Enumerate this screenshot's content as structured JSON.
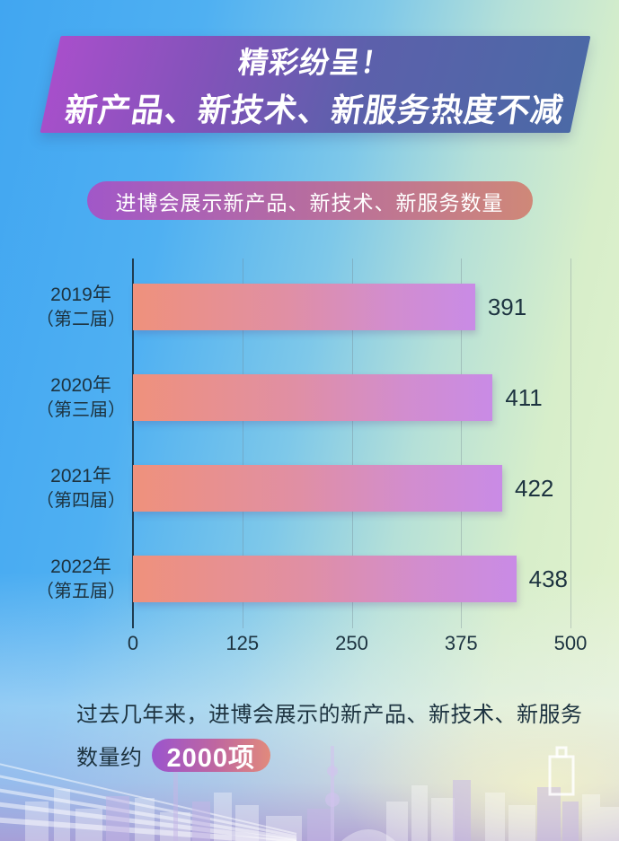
{
  "banner": {
    "line1": "精彩纷呈！",
    "line2": "新产品、新技术、新服务热度不减"
  },
  "subtitle_pill": "进博会展示新产品、新技术、新服务数量",
  "chart_data": {
    "type": "bar",
    "orientation": "horizontal",
    "title": "进博会展示新产品、新技术、新服务数量",
    "categories": [
      {
        "year": "2019年",
        "session": "（第二届）"
      },
      {
        "year": "2020年",
        "session": "（第三届）"
      },
      {
        "year": "2021年",
        "session": "（第四届）"
      },
      {
        "year": "2022年",
        "session": "（第五届）"
      }
    ],
    "values": [
      391,
      411,
      422,
      438
    ],
    "x_ticks": [
      0,
      125,
      250,
      375,
      500
    ],
    "xlim": [
      0,
      500
    ],
    "grid": true,
    "legend": "none",
    "bar_gradient": [
      "#ef917c",
      "#c98be6"
    ],
    "text_color": "#1d3340"
  },
  "footer": {
    "line1": "过去几年来，进博会展示的新产品、新技术、新服务",
    "line2_prefix": "数量约",
    "line2_badge": "2000项"
  },
  "colors": {
    "background_blue": "#41a6f1",
    "background_green": "#e5f3cf",
    "background_bottom_lavender": "#b09ed5",
    "banner_gradient_left": "#a84fcb",
    "banner_gradient_right": "#4b69a6",
    "subtitle_gradient_left": "#a157c8",
    "subtitle_gradient_right": "#cf8878",
    "badge_gradient_left": "#9b54ce",
    "badge_gradient_right": "#e18a7c",
    "axis_color": "#1f3c50"
  }
}
